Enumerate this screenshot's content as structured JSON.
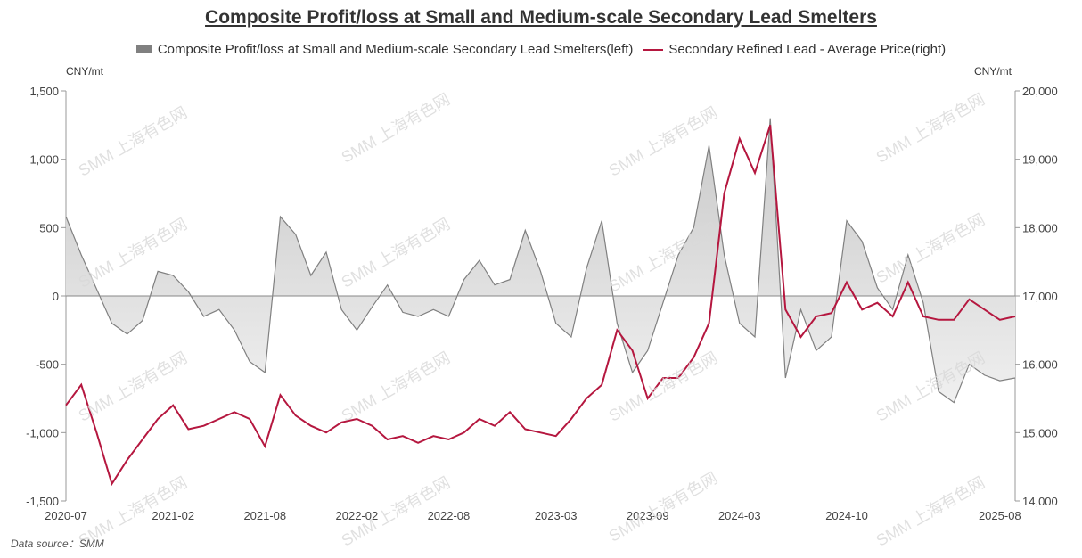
{
  "chart_data": {
    "type": "line",
    "title": "Composite Profit/loss at Small and Medium-scale Secondary Lead Smelters",
    "left_unit": "CNY/mt",
    "right_unit": "CNY/mt",
    "left_axis": {
      "ylim": [
        -1500,
        1500
      ],
      "ticks": [
        1500,
        1000,
        500,
        0,
        -500,
        -1000,
        -1500
      ],
      "tick_labels": [
        "1,500",
        "1,000",
        "500",
        "0",
        "-500",
        "-1,000",
        "-1,500"
      ]
    },
    "right_axis": {
      "ylim": [
        14000,
        20000
      ],
      "ticks": [
        20000,
        19000,
        18000,
        17000,
        16000,
        15000,
        14000
      ],
      "tick_labels": [
        "20,000",
        "19,000",
        "18,000",
        "17,000",
        "16,000",
        "15,000",
        "14,000"
      ]
    },
    "x_ticks": [
      "2020-07",
      "2021-02",
      "2021-08",
      "2022-02",
      "2022-08",
      "2023-03",
      "2023-09",
      "2024-03",
      "2024-10",
      "2025-08"
    ],
    "x_range_months": [
      0,
      62
    ],
    "x_tick_months": [
      0,
      7,
      13,
      19,
      25,
      32,
      38,
      44,
      51,
      61
    ],
    "legend_position": "top-center",
    "series": [
      {
        "name": "Composite Profit/loss at Small and Medium-scale Secondary Lead Smelters(left)",
        "axis": "left",
        "style": "area",
        "color": "#808080",
        "x": [
          0,
          1,
          2,
          3,
          4,
          5,
          6,
          7,
          8,
          9,
          10,
          11,
          12,
          13,
          14,
          15,
          16,
          17,
          18,
          19,
          20,
          21,
          22,
          23,
          24,
          25,
          26,
          27,
          28,
          29,
          30,
          31,
          32,
          33,
          34,
          35,
          36,
          37,
          38,
          39,
          40,
          41,
          42,
          43,
          44,
          45,
          46,
          47,
          48,
          49,
          50,
          51,
          52,
          53,
          54,
          55,
          56,
          57,
          58,
          59,
          60,
          61,
          62
        ],
        "values": [
          580,
          300,
          50,
          -200,
          -280,
          -180,
          180,
          150,
          30,
          -150,
          -100,
          -250,
          -480,
          -560,
          580,
          450,
          150,
          320,
          -100,
          -250,
          -80,
          80,
          -120,
          -150,
          -100,
          -150,
          120,
          260,
          80,
          120,
          480,
          180,
          -200,
          -300,
          200,
          550,
          -200,
          -560,
          -400,
          -50,
          300,
          500,
          1100,
          300,
          -200,
          -300,
          1300,
          -600,
          -100,
          -400,
          -300,
          550,
          400,
          60,
          -100,
          300,
          -50,
          -700,
          -780,
          -500,
          -580,
          -620,
          -600
        ]
      },
      {
        "name": "Secondary Refined Lead - Average Price(right)",
        "axis": "right",
        "style": "line",
        "color": "#b5173f",
        "x": [
          0,
          1,
          2,
          3,
          4,
          5,
          6,
          7,
          8,
          9,
          10,
          11,
          12,
          13,
          14,
          15,
          16,
          17,
          18,
          19,
          20,
          21,
          22,
          23,
          24,
          25,
          26,
          27,
          28,
          29,
          30,
          31,
          32,
          33,
          34,
          35,
          36,
          37,
          38,
          39,
          40,
          41,
          42,
          43,
          44,
          45,
          46,
          47,
          48,
          49,
          50,
          51,
          52,
          53,
          54,
          55,
          56,
          57,
          58,
          59,
          60,
          61,
          62
        ],
        "values": [
          15400,
          15700,
          15000,
          14250,
          14600,
          14900,
          15200,
          15400,
          15050,
          15100,
          15200,
          15300,
          15200,
          14800,
          15550,
          15250,
          15100,
          15000,
          15150,
          15200,
          15100,
          14900,
          14950,
          14850,
          14950,
          14900,
          15000,
          15200,
          15100,
          15300,
          15050,
          15000,
          14950,
          15200,
          15500,
          15700,
          16500,
          16200,
          15500,
          15800,
          15800,
          16100,
          16600,
          18500,
          19300,
          18800,
          19500,
          16800,
          16400,
          16700,
          16750,
          17200,
          16800,
          16900,
          16700,
          17200,
          16700,
          16650,
          16650,
          16950,
          16800,
          16650,
          16700
        ]
      }
    ]
  },
  "watermark": "SMM 上海有色网",
  "source": "Data source：SMM"
}
